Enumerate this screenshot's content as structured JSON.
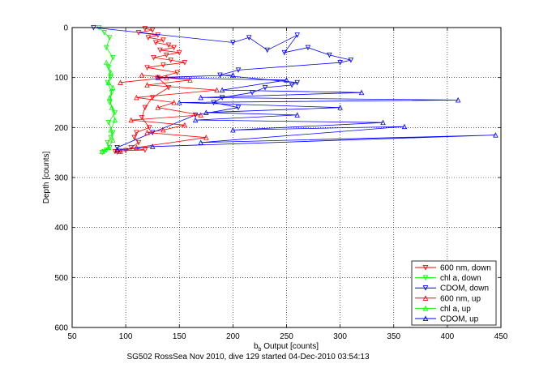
{
  "chart_data": {
    "type": "line",
    "title": "",
    "xlabel_main": "b",
    "xlabel_sub": "b",
    "xlabel_rest": " Output [counts]",
    "ylabel": "Depth [counts]",
    "xlim": [
      50,
      450
    ],
    "ylim": [
      0,
      600
    ],
    "y_reversed": true,
    "grid": "on (dotted)",
    "legend_position": "bottom-right",
    "x_ticks": [
      "50",
      "100",
      "150",
      "200",
      "250",
      "300",
      "350",
      "400",
      "450"
    ],
    "y_ticks": [
      "0",
      "100",
      "200",
      "300",
      "400",
      "500",
      "600"
    ],
    "footer": "SG502 RossSea Nov 2010, dive 129 started 04-Dec-2010 03:54:13",
    "colors": {
      "red": "#ff0000",
      "green": "#00ff00",
      "blue": "#0000ff"
    },
    "series": [
      {
        "name": "600 nm, down",
        "color": "#ff0000",
        "marker": "triangle-down",
        "x": [
          118,
          125,
          112,
          130,
          121,
          135,
          128,
          140,
          145,
          132,
          150,
          138,
          126,
          142,
          155,
          135,
          120,
          148,
          130,
          140,
          125,
          118,
          115,
          122,
          110,
          108,
          112,
          105,
          118,
          100,
          95,
          90,
          92
        ],
        "y": [
          2,
          5,
          10,
          15,
          20,
          25,
          30,
          35,
          40,
          45,
          50,
          55,
          60,
          65,
          70,
          75,
          80,
          90,
          100,
          120,
          140,
          160,
          180,
          200,
          210,
          220,
          230,
          240,
          245,
          246,
          247,
          248,
          249
        ]
      },
      {
        "name": "chl a, down",
        "color": "#00ff00",
        "marker": "triangle-down",
        "x": [
          75,
          80,
          85,
          82,
          88,
          84,
          86,
          83,
          87,
          85,
          90,
          84,
          88,
          86,
          83,
          85,
          82,
          80,
          78
        ],
        "y": [
          0,
          10,
          20,
          40,
          60,
          80,
          100,
          110,
          130,
          150,
          170,
          190,
          210,
          220,
          230,
          240,
          245,
          248,
          250
        ]
      },
      {
        "name": "CDOM, down",
        "color": "#0000ff",
        "marker": "triangle-down",
        "x": [
          70,
          200,
          215,
          232,
          260,
          248,
          270,
          290,
          310,
          300,
          205,
          188,
          260,
          255,
          230,
          218,
          190,
          182,
          205,
          165,
          125,
          92
        ],
        "y": [
          0,
          30,
          20,
          45,
          15,
          50,
          40,
          55,
          65,
          70,
          85,
          95,
          110,
          115,
          120,
          130,
          140,
          150,
          160,
          175,
          210,
          240
        ]
      },
      {
        "name": "600 nm, up",
        "color": "#ff0000",
        "marker": "triangle-up",
        "x": [
          95,
          110,
          175,
          120,
          135,
          155,
          105,
          170,
          130,
          145,
          110,
          185,
          120,
          160,
          115,
          138,
          95
        ],
        "y": [
          248,
          240,
          220,
          210,
          205,
          195,
          185,
          175,
          160,
          150,
          140,
          125,
          115,
          105,
          95,
          100,
          110
        ]
      },
      {
        "name": "chl a, up",
        "color": "#00ff00",
        "marker": "triangle-up",
        "x": [
          78,
          84,
          88,
          86,
          90,
          87,
          85,
          88,
          84,
          86,
          82
        ],
        "y": [
          248,
          240,
          225,
          205,
          185,
          160,
          140,
          120,
          110,
          90,
          70
        ]
      },
      {
        "name": "CDOM, up",
        "color": "#0000ff",
        "marker": "triangle-up",
        "x": [
          92,
          125,
          445,
          170,
          360,
          200,
          340,
          165,
          260,
          175,
          300,
          150,
          410,
          170,
          320,
          190,
          250,
          130,
          200
        ],
        "y": [
          245,
          238,
          215,
          230,
          198,
          205,
          190,
          185,
          175,
          170,
          160,
          150,
          145,
          140,
          130,
          125,
          105,
          100,
          95
        ]
      }
    ]
  }
}
